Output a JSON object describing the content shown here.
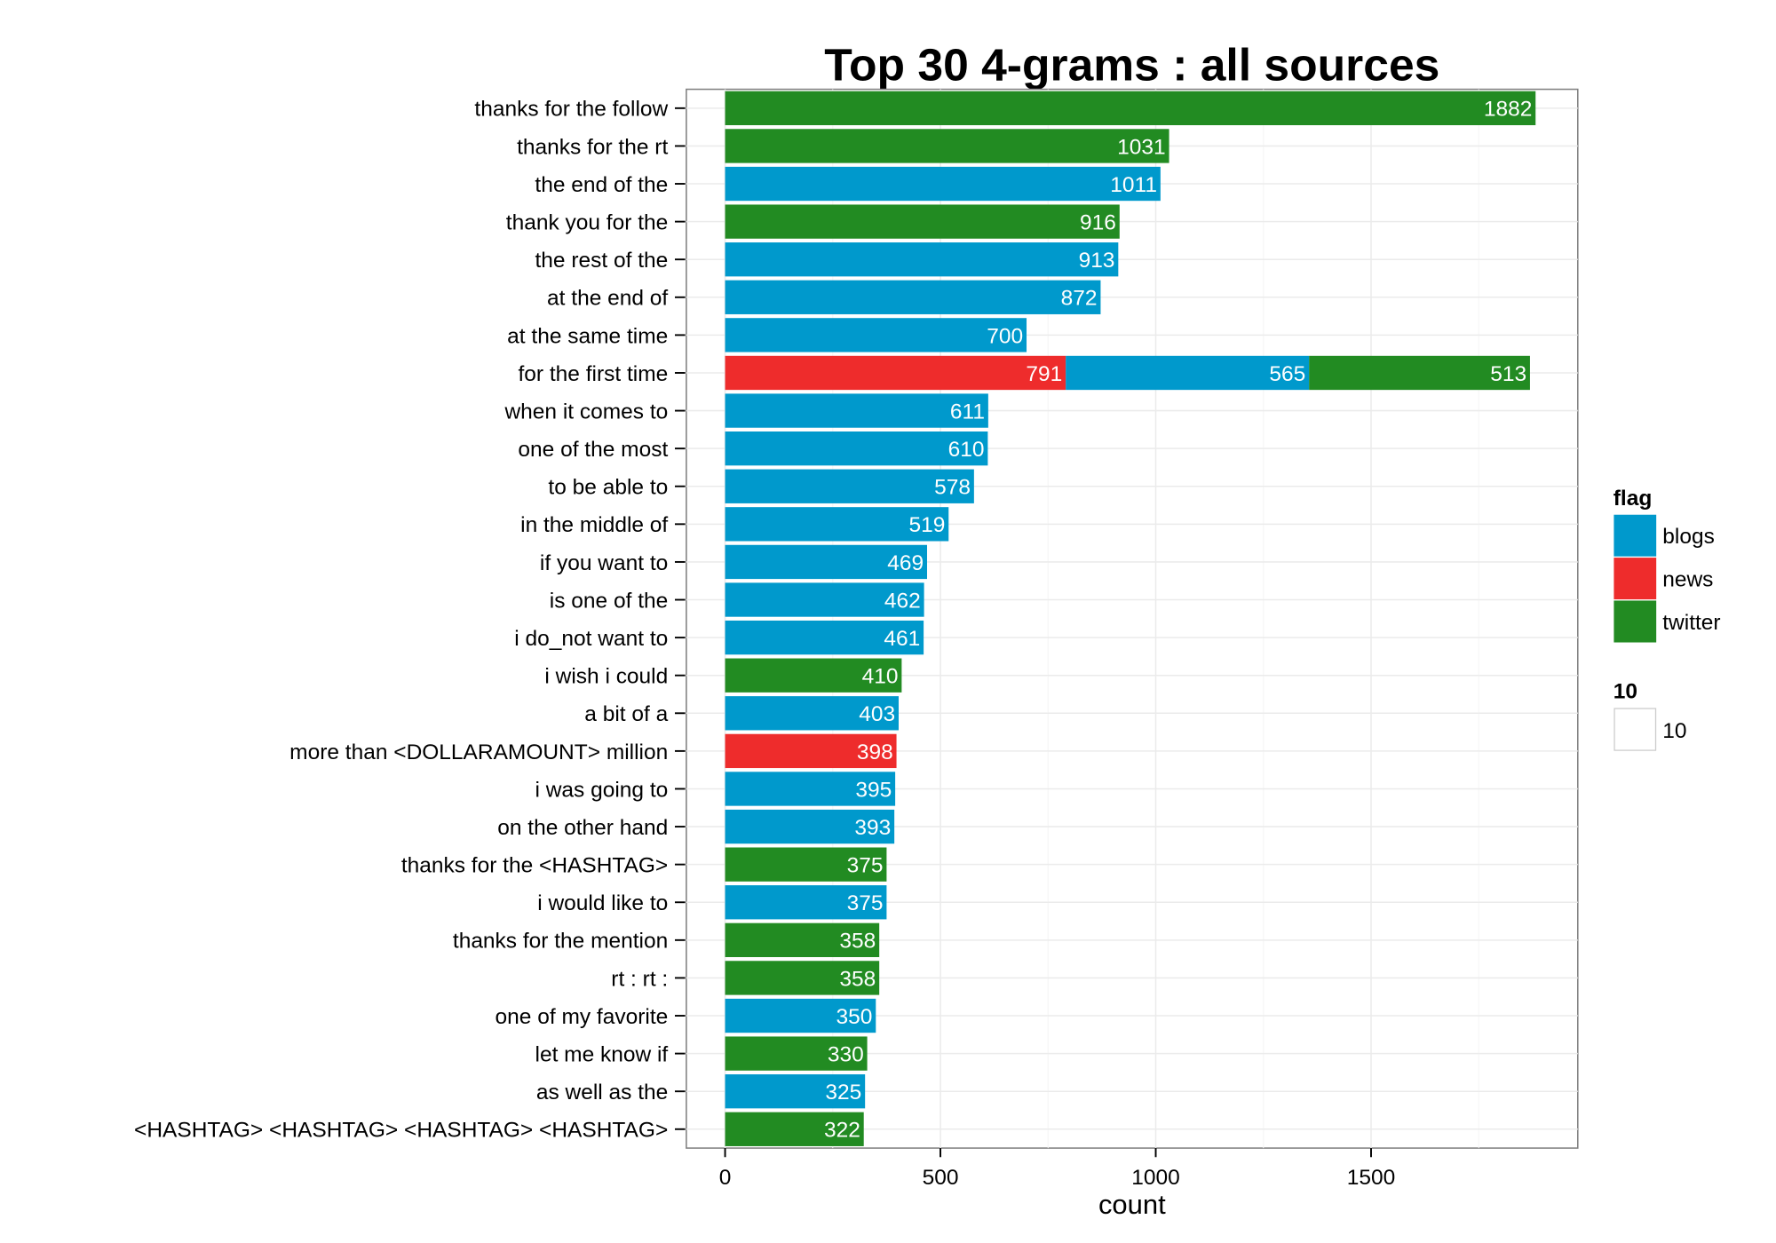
{
  "chart_data": {
    "type": "bar",
    "orientation": "horizontal",
    "stacked": true,
    "title": "Top 30 4-grams : all sources",
    "xlabel": "count",
    "ylabel": "",
    "xlim": [
      -90,
      1980
    ],
    "xticks": [
      0,
      500,
      1000,
      1500
    ],
    "xtick_labels": [
      "0",
      "500",
      "1000",
      "1500"
    ],
    "grid": true,
    "legend": {
      "position": "right",
      "title": "flag",
      "entries": [
        {
          "label": "blogs",
          "color": "#0099CC"
        },
        {
          "label": "news",
          "color": "#EE2C2C"
        },
        {
          "label": "twitter",
          "color": "#228B22"
        }
      ],
      "size_title": "10",
      "size_label": "10"
    },
    "categories": [
      "thanks for the follow",
      "thanks for the rt",
      "the end of the",
      "thank you for the",
      "the rest of the",
      "at the end of",
      "at the same time",
      "for the first time",
      "when it comes to",
      "one of the most",
      "to be able to",
      "in the middle of",
      "if you want to",
      "is one of the",
      "i do_not want to",
      "i wish i could",
      "a bit of a",
      "more than <DOLLARAMOUNT> million",
      "i was going to",
      "on the other hand",
      "thanks for the <HASHTAG>",
      "i would like to",
      "thanks for the mention",
      "rt : rt :",
      "one of my favorite",
      "let me know if",
      "as well as the",
      "<HASHTAG> <HASHTAG> <HASHTAG> <HASHTAG>"
    ],
    "bars": [
      [
        {
          "flag": "twitter",
          "value": 1882
        }
      ],
      [
        {
          "flag": "twitter",
          "value": 1031
        }
      ],
      [
        {
          "flag": "blogs",
          "value": 1011
        }
      ],
      [
        {
          "flag": "twitter",
          "value": 916
        }
      ],
      [
        {
          "flag": "blogs",
          "value": 913
        }
      ],
      [
        {
          "flag": "blogs",
          "value": 872
        }
      ],
      [
        {
          "flag": "blogs",
          "value": 700
        }
      ],
      [
        {
          "flag": "news",
          "value": 791
        },
        {
          "flag": "blogs",
          "value": 565
        },
        {
          "flag": "twitter",
          "value": 513
        }
      ],
      [
        {
          "flag": "blogs",
          "value": 611
        }
      ],
      [
        {
          "flag": "blogs",
          "value": 610
        }
      ],
      [
        {
          "flag": "blogs",
          "value": 578
        }
      ],
      [
        {
          "flag": "blogs",
          "value": 519
        }
      ],
      [
        {
          "flag": "blogs",
          "value": 469
        }
      ],
      [
        {
          "flag": "blogs",
          "value": 462
        }
      ],
      [
        {
          "flag": "blogs",
          "value": 461
        }
      ],
      [
        {
          "flag": "twitter",
          "value": 410
        }
      ],
      [
        {
          "flag": "blogs",
          "value": 403
        }
      ],
      [
        {
          "flag": "news",
          "value": 398
        }
      ],
      [
        {
          "flag": "blogs",
          "value": 395
        }
      ],
      [
        {
          "flag": "blogs",
          "value": 393
        }
      ],
      [
        {
          "flag": "twitter",
          "value": 375
        }
      ],
      [
        {
          "flag": "blogs",
          "value": 375
        }
      ],
      [
        {
          "flag": "twitter",
          "value": 358
        }
      ],
      [
        {
          "flag": "twitter",
          "value": 358
        }
      ],
      [
        {
          "flag": "blogs",
          "value": 350
        }
      ],
      [
        {
          "flag": "twitter",
          "value": 330
        }
      ],
      [
        {
          "flag": "blogs",
          "value": 325
        }
      ],
      [
        {
          "flag": "twitter",
          "value": 322
        }
      ]
    ]
  }
}
